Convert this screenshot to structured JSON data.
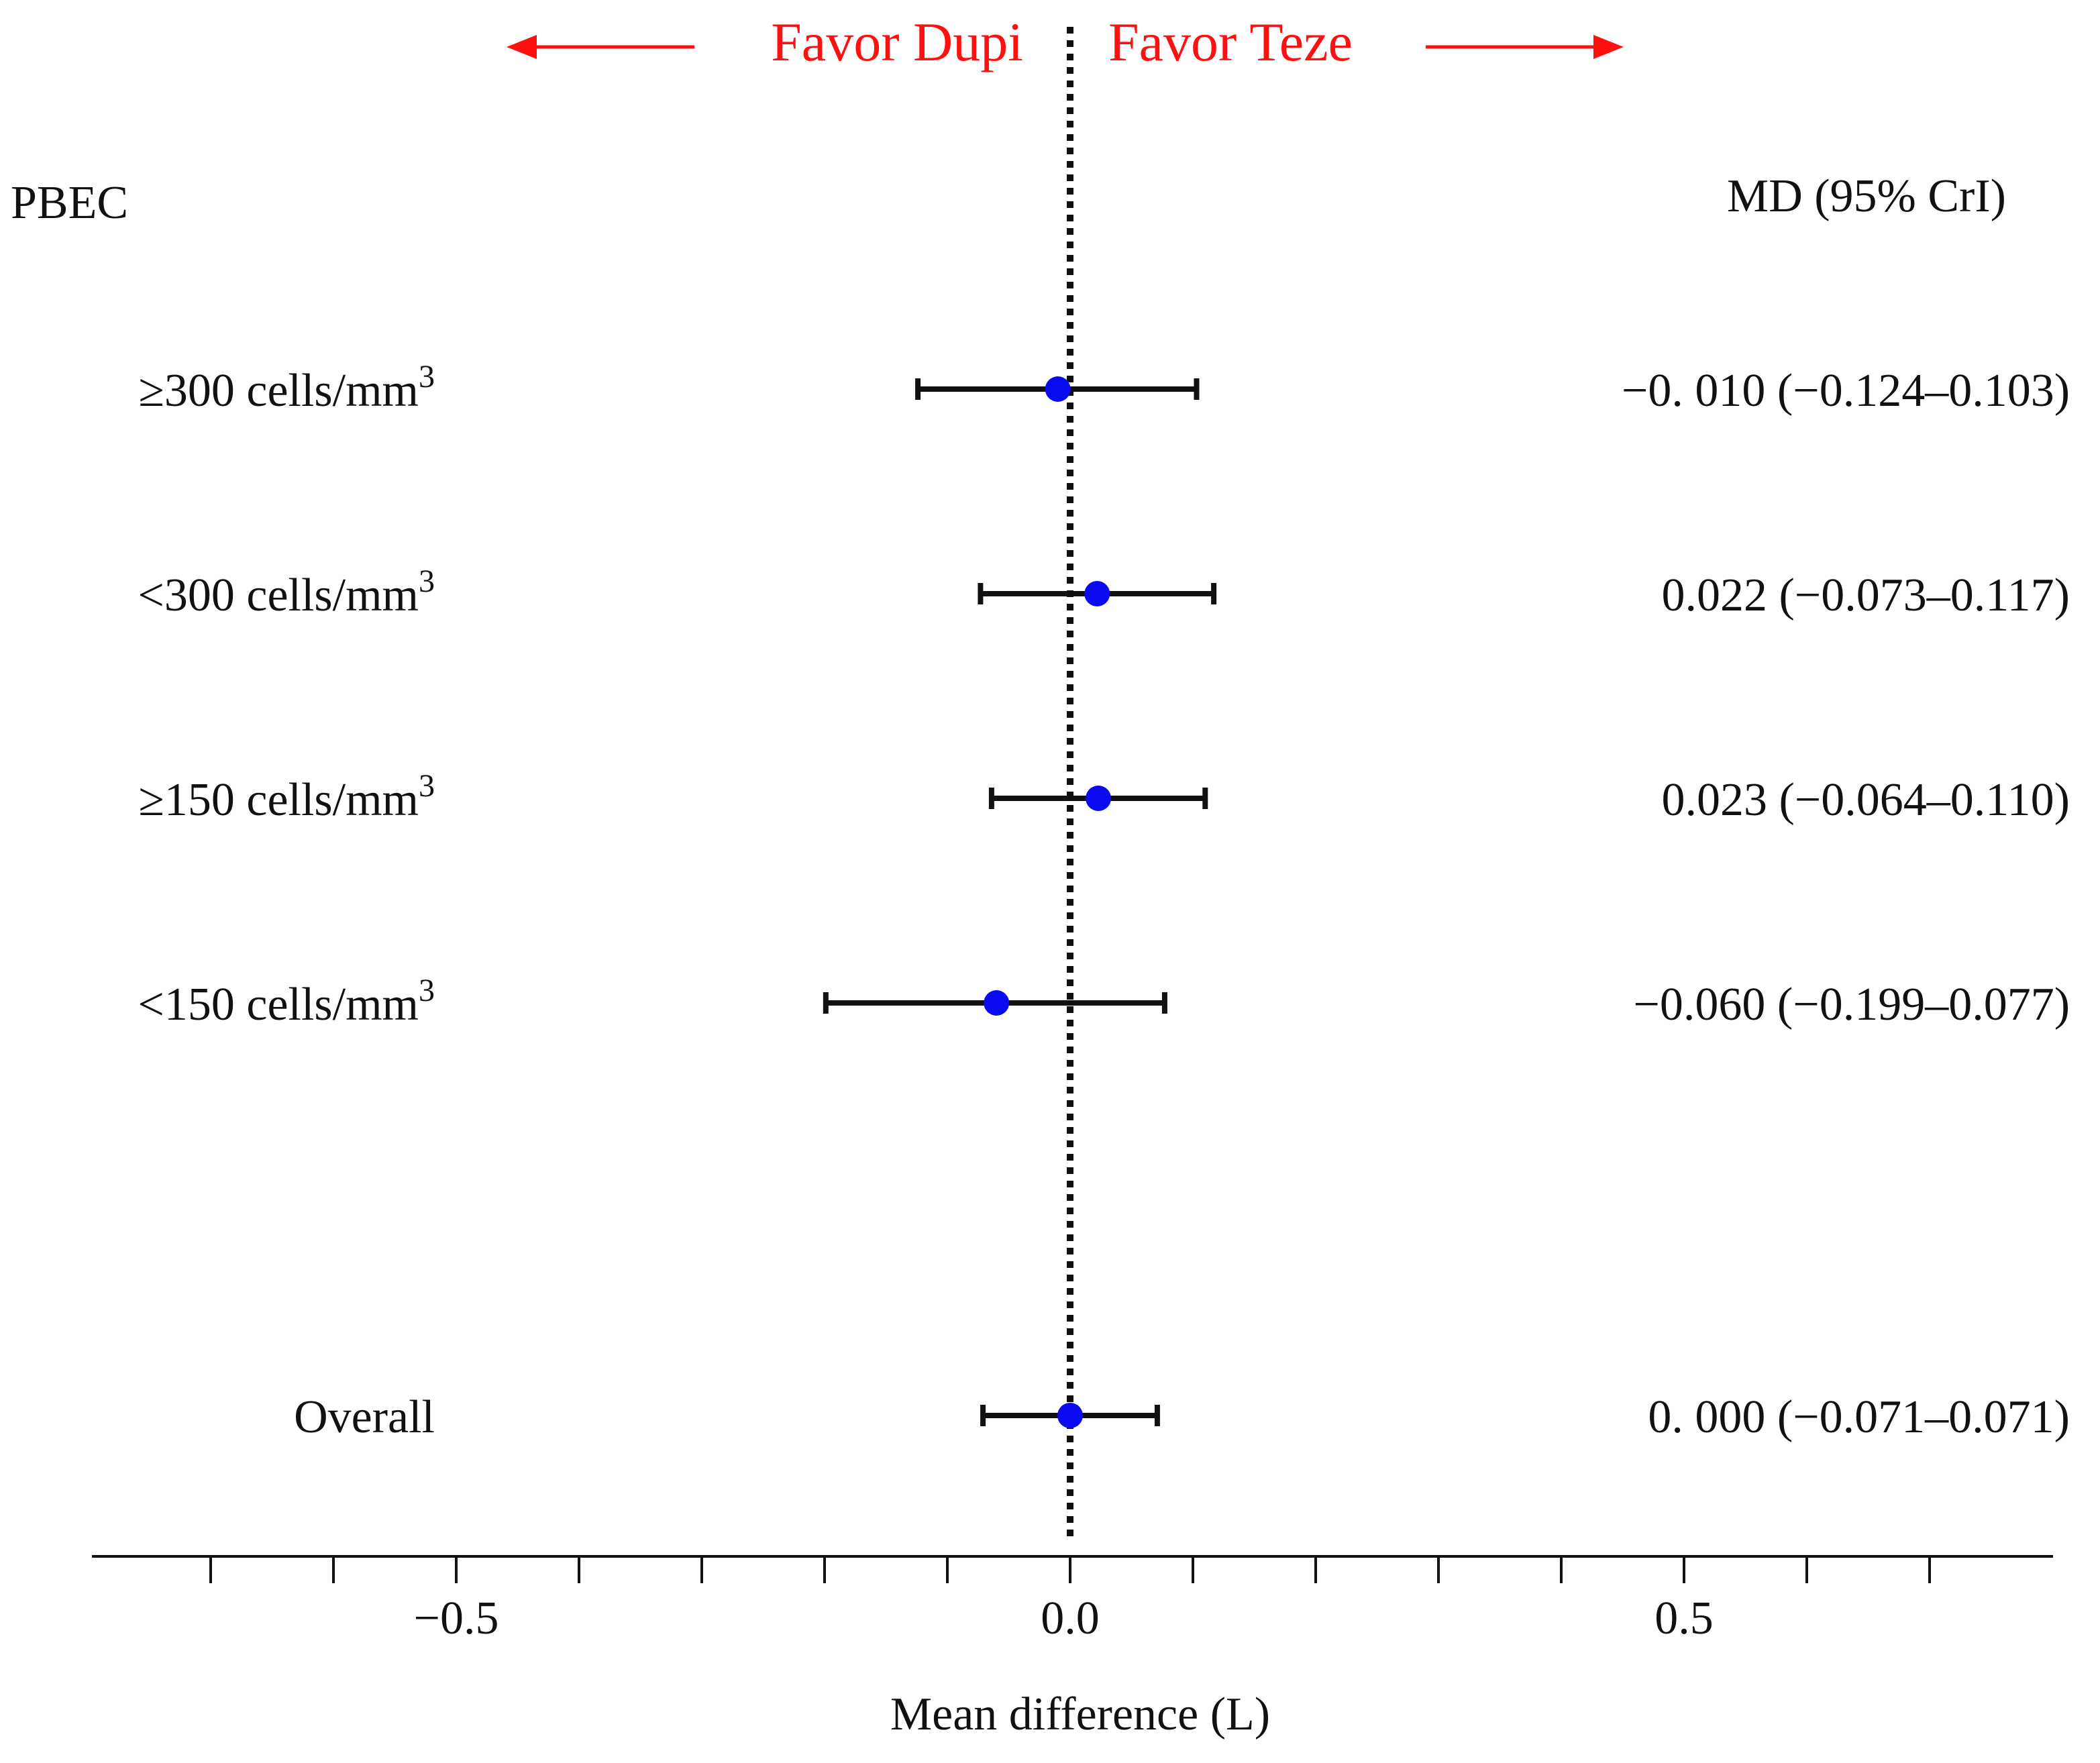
{
  "chart_data": {
    "type": "forest",
    "favor_left_label": "Favor Dupi",
    "favor_right_label": "Favor Teze",
    "group_header": "PBEC",
    "estimate_header": "MD (95% CrI)",
    "xlabel": "Mean difference (L)",
    "xlim": [
      -0.8,
      0.8
    ],
    "major_ticks": [
      -0.5,
      0.0,
      0.5
    ],
    "major_tick_labels": [
      "−0.5",
      "0.0",
      "0.5"
    ],
    "minor_tick_step": 0.1,
    "reference_value": 0.0,
    "rows": [
      {
        "label": "≥300 cells/mm",
        "superscript": "3",
        "md": -0.01,
        "lower": -0.124,
        "upper": 0.103,
        "estimate_text": "−0. 010 (−0.124–0.103)"
      },
      {
        "label": "<300 cells/mm",
        "superscript": "3",
        "md": 0.022,
        "lower": -0.073,
        "upper": 0.117,
        "estimate_text": "0.022 (−0.073–0.117)"
      },
      {
        "label": "≥150 cells/mm",
        "superscript": "3",
        "md": 0.023,
        "lower": -0.064,
        "upper": 0.11,
        "estimate_text": "0.023 (−0.064–0.110)"
      },
      {
        "label": "<150 cells/mm",
        "superscript": "3",
        "md": -0.06,
        "lower": -0.199,
        "upper": 0.077,
        "estimate_text": "−0.060 (−0.199–0.077)"
      },
      {
        "label": "Overall",
        "superscript": "",
        "md": 0.0,
        "lower": -0.071,
        "upper": 0.071,
        "estimate_text": "0. 000 (−0.071–0.071)"
      }
    ],
    "colors": {
      "point": "#0a0af0",
      "favor": "#ff1010",
      "line": "#111111"
    }
  }
}
